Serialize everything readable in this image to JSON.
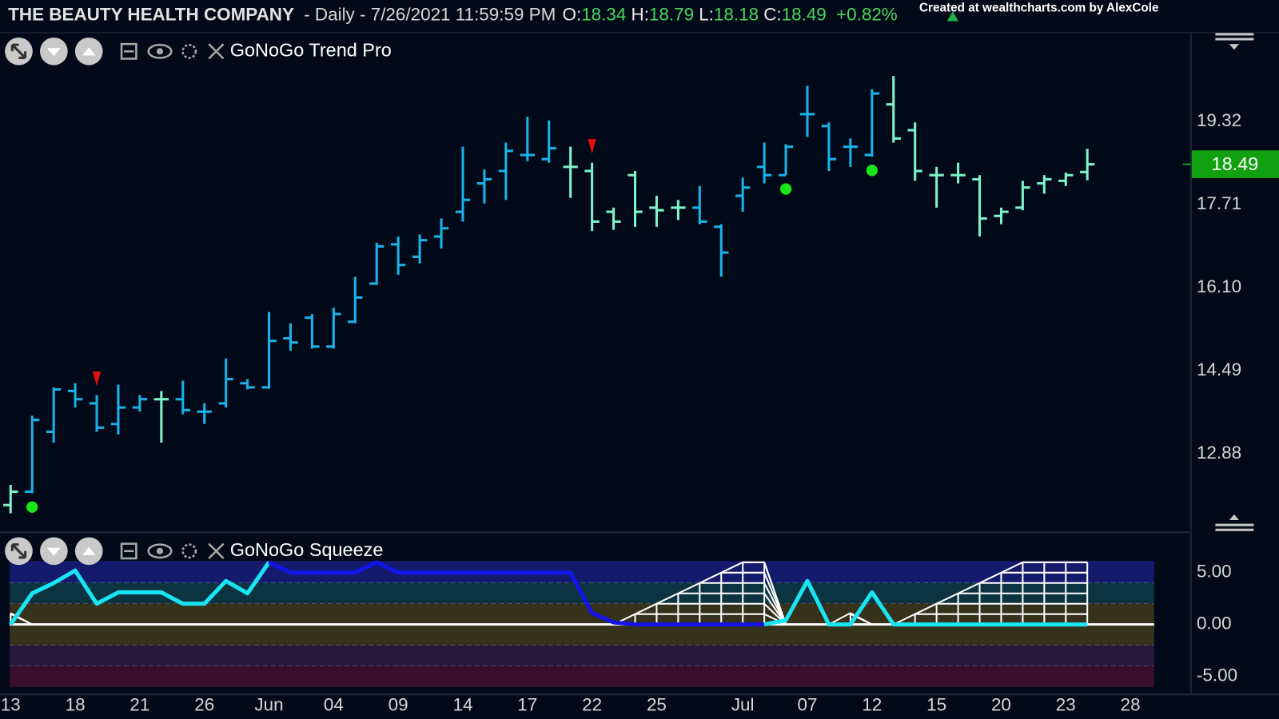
{
  "header": {
    "company": "THE BEAUTY HEALTH COMPANY",
    "period": "- Daily - 7/26/2021 11:59:59 PM",
    "labels": [
      "O:",
      "H:",
      "L:",
      "C:"
    ],
    "change": "+0.82%",
    "watermark": "Created at wealthcharts.com by AlexCole"
  },
  "chart_data": [
    {
      "type": "ohlc",
      "title": "GoNoGo Trend Pro",
      "categories": [
        "13",
        null,
        null,
        "18",
        null,
        null,
        "21",
        null,
        null,
        "26",
        null,
        null,
        "Jun",
        null,
        null,
        "04",
        null,
        null,
        "09",
        null,
        null,
        "14",
        null,
        null,
        "17",
        null,
        null,
        "22",
        null,
        null,
        "25",
        null,
        null,
        null,
        "Jul",
        null,
        null,
        "07",
        null,
        null,
        "12",
        null,
        null,
        "15",
        null,
        null,
        "20",
        null,
        null,
        "23",
        null,
        null,
        "28"
      ],
      "open": [
        11.89,
        12.15,
        13.31,
        14.1,
        13.86,
        13.46,
        13.78,
        13.94,
        13.94,
        13.7,
        13.86,
        14.25,
        14.17,
        15.12,
        15.52,
        14.96,
        15.44,
        16.18,
        16.94,
        16.7,
        17.09,
        17.57,
        18.12,
        18.36,
        18.67,
        18.59,
        18.44,
        18.36,
        17.57,
        18.28,
        17.65,
        17.65,
        17.65,
        17.28,
        17.88,
        18.44,
        18.28,
        19.46,
        19.23,
        18.83,
        18.67,
        19.65,
        19.15,
        18.28,
        18.28,
        18.2,
        17.49,
        17.65,
        18.12,
        18.17,
        18.34,
        null,
        null
      ],
      "high": [
        12.28,
        13.62,
        14.17,
        14.25,
        14.02,
        14.22,
        14.02,
        14.1,
        14.3,
        13.86,
        14.73,
        14.33,
        15.63,
        15.41,
        15.59,
        15.71,
        16.31,
        16.97,
        17.09,
        17.13,
        17.44,
        18.83,
        18.39,
        18.91,
        19.41,
        19.34,
        18.83,
        18.52,
        17.65,
        18.36,
        17.88,
        17.8,
        18.07,
        17.33,
        18.23,
        18.91,
        18.88,
        20.01,
        19.3,
        18.99,
        19.94,
        20.2,
        19.3,
        18.44,
        18.52,
        18.28,
        17.65,
        18.17,
        18.28,
        18.33,
        18.79,
        null,
        null
      ],
      "low": [
        11.73,
        12.12,
        13.1,
        13.78,
        13.31,
        13.26,
        13.7,
        13.1,
        13.65,
        13.46,
        13.78,
        14.13,
        14.14,
        14.88,
        14.92,
        14.92,
        15.41,
        16.15,
        16.35,
        16.57,
        16.86,
        17.38,
        17.73,
        17.8,
        18.55,
        18.52,
        17.84,
        17.2,
        17.22,
        17.28,
        17.28,
        17.41,
        17.33,
        16.31,
        17.57,
        18.12,
        18.28,
        19.02,
        18.36,
        18.44,
        18.64,
        18.91,
        18.17,
        17.65,
        18.12,
        17.09,
        17.33,
        17.6,
        17.92,
        18.07,
        18.18,
        null,
        null
      ],
      "close": [
        12.15,
        13.54,
        14.13,
        13.94,
        13.39,
        13.78,
        13.94,
        13.94,
        13.73,
        13.7,
        14.33,
        14.17,
        15.07,
        15.04,
        14.96,
        15.59,
        15.91,
        16.9,
        16.54,
        17.02,
        17.25,
        17.8,
        18.2,
        18.75,
        18.67,
        18.8,
        18.44,
        17.38,
        17.38,
        17.57,
        17.6,
        17.65,
        17.38,
        16.78,
        18.04,
        18.28,
        18.83,
        19.46,
        18.59,
        18.83,
        19.86,
        18.99,
        18.36,
        18.28,
        18.28,
        17.44,
        17.57,
        18.04,
        18.2,
        18.28,
        18.49,
        null,
        null
      ],
      "colors": [
        "#7ff2c9",
        "#1ab2e8",
        "#1ab2e8",
        "#1ab2e8",
        "#1ab2e8",
        "#1ab2e8",
        "#1ab2e8",
        "#7ff2c9",
        "#1ab2e8",
        "#1ab2e8",
        "#1ab2e8",
        "#1ab2e8",
        "#1ab2e8",
        "#1ab2e8",
        "#1ab2e8",
        "#1ab2e8",
        "#1ab2e8",
        "#1ab2e8",
        "#1ab2e8",
        "#1ab2e8",
        "#1ab2e8",
        "#1ab2e8",
        "#1ab2e8",
        "#1ab2e8",
        "#1ab2e8",
        "#1ab2e8",
        "#7ff2c9",
        "#7ff2c9",
        "#7ff2c9",
        "#7ff2c9",
        "#7ff2c9",
        "#7ff2c9",
        "#1ab2e8",
        "#1ab2e8",
        "#1ab2e8",
        "#1ab2e8",
        "#1ab2e8",
        "#1ab2e8",
        "#1ab2e8",
        "#1ab2e8",
        "#1ab2e8",
        "#7ff2c9",
        "#7ff2c9",
        "#7ff2c9",
        "#7ff2c9",
        "#7ff2c9",
        "#7ff2c9",
        "#7ff2c9",
        "#7ff2c9",
        "#7ff2c9",
        "#7ff2c9",
        null,
        null
      ],
      "signals": [
        {
          "bar": 1,
          "kind": "dot",
          "color": "#19e619"
        },
        {
          "bar": 4,
          "kind": "triangle",
          "color": "#e01010"
        },
        {
          "bar": 27,
          "kind": "triangle",
          "color": "#e01010"
        },
        {
          "bar": 36,
          "kind": "dot",
          "color": "#19e619"
        },
        {
          "bar": 40,
          "kind": "dot",
          "color": "#19e619"
        }
      ],
      "last_price_color": "#10a010",
      "ylim": [
        11.41,
        21.04
      ],
      "yticks": [
        12.88,
        14.49,
        {
          "value": 16.1,
          "label": "16.10"
        },
        17.71,
        19.32
      ]
    },
    {
      "type": "squeeze",
      "title": "GoNoGo Squeeze",
      "values": [
        0,
        3.0,
        4.0,
        5.2,
        2.0,
        3.1,
        3.1,
        3.1,
        2.0,
        2.0,
        4.2,
        3.0,
        6.0,
        5.0,
        5.0,
        5.0,
        5.0,
        6.0,
        5.0,
        5.0,
        5.0,
        5.0,
        5.0,
        5.0,
        5.0,
        5.0,
        5.0,
        1.1,
        0.2,
        0,
        0,
        0,
        0,
        0,
        0,
        0,
        0.4,
        4.2,
        0,
        0,
        3.1,
        0,
        0,
        0,
        0,
        0,
        0,
        0,
        0,
        0,
        0,
        null,
        null
      ],
      "colors": [
        "#19e4f2",
        "#19e4f2",
        "#19e4f2",
        "#19e4f2",
        "#19e4f2",
        "#19e4f2",
        "#19e4f2",
        "#19e4f2",
        "#19e4f2",
        "#19e4f2",
        "#19e4f2",
        "#19e4f2",
        "#1414e6",
        "#1414e6",
        "#1414e6",
        "#1414e6",
        "#1414e6",
        "#1414e6",
        "#1414e6",
        "#1414e6",
        "#1414e6",
        "#1414e6",
        "#1414e6",
        "#1414e6",
        "#1414e6",
        "#1414e6",
        "#1414e6",
        "#1414e6",
        "#1414e6",
        "#1414e6",
        "#1414e6",
        "#1414e6",
        "#1414e6",
        "#1414e6",
        "#1414e6",
        "#19e4f2",
        "#19e4f2",
        "#19e4f2",
        "#19e4f2",
        "#19e4f2",
        "#19e4f2",
        "#19e4f2",
        "#19e4f2",
        "#19e4f2",
        "#19e4f2",
        "#19e4f2",
        "#19e4f2",
        "#19e4f2",
        "#19e4f2",
        "#19e4f2",
        "#19e4f2",
        null,
        null
      ],
      "grid_levels": [
        1.1,
        0,
        null,
        null,
        null,
        null,
        null,
        null,
        null,
        null,
        null,
        null,
        null,
        null,
        null,
        null,
        null,
        null,
        null,
        null,
        null,
        null,
        null,
        null,
        null,
        null,
        null,
        null,
        0,
        1,
        2,
        3,
        4,
        5,
        6,
        6,
        0,
        null,
        0,
        1.1,
        0,
        0,
        1,
        2,
        3,
        4,
        5,
        6,
        6,
        6,
        6,
        null,
        null
      ],
      "grid_color": "#ffffff",
      "bands": [
        {
          "from": 4,
          "to": 6.14,
          "color": "#141a6c"
        },
        {
          "from": 2,
          "to": 4,
          "color": "#0c3340"
        },
        {
          "from": -2,
          "to": 2,
          "color": "#35311a"
        },
        {
          "from": -4,
          "to": -2,
          "color": "#28193f"
        },
        {
          "from": -6.06,
          "to": -4,
          "color": "#3a0f2d"
        }
      ],
      "ylim": [
        -6.06,
        6.14
      ],
      "yticks": [
        {
          "value": 5,
          "label": "5.00"
        },
        {
          "value": 0,
          "label": "0.00"
        },
        {
          "value": -5,
          "label": "-5.00"
        }
      ]
    }
  ]
}
